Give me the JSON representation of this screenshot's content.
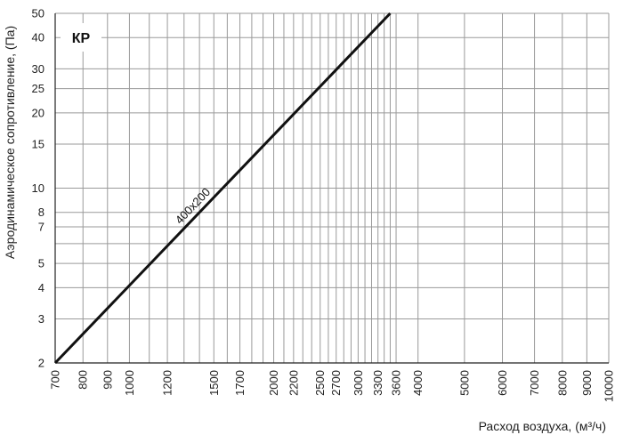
{
  "chart_data": {
    "type": "line",
    "title": "",
    "badge": "КР",
    "xlabel": "Расход воздуха, (м³/ч)",
    "ylabel": "Аэродинамическое сопротивление, (Па)",
    "xscale": "log",
    "yscale": "log",
    "xlim": [
      700,
      10000
    ],
    "ylim": [
      2,
      50
    ],
    "grid": true,
    "x_ticks": [
      700,
      800,
      900,
      1000,
      1200,
      1500,
      1700,
      2000,
      2200,
      2500,
      2700,
      3000,
      3300,
      3600,
      4000,
      5000,
      6000,
      7000,
      8000,
      9000,
      10000
    ],
    "x_tick_labels": [
      "700",
      "800",
      "900",
      "1000",
      "1200",
      "1500",
      "1700",
      "2000",
      "2200",
      "2500",
      "2700",
      "3000",
      "3300",
      "3600",
      "4000",
      "5000",
      "6000",
      "7000",
      "8000",
      "9000",
      "10000"
    ],
    "y_ticks": [
      2,
      3,
      4,
      5,
      7,
      8,
      10,
      15,
      20,
      25,
      30,
      40,
      50
    ],
    "y_tick_labels": [
      "2",
      "3",
      "4",
      "5",
      "7",
      "8",
      "10",
      "15",
      "20",
      "25",
      "30",
      "40",
      "50"
    ],
    "extra_x_grid": [
      1100,
      1300,
      1400,
      1600,
      1800,
      1900,
      2100,
      2300,
      2400,
      2600,
      2800,
      2900,
      3100,
      3200,
      3400,
      3500
    ],
    "extra_y_grid": [
      6
    ],
    "series": [
      {
        "name": "400x200",
        "x": [
          700,
          3500
        ],
        "y": [
          2.0,
          50.0
        ],
        "label_at_x": 1400
      }
    ]
  },
  "colors": {
    "line": "#111111",
    "grid": "#9a9a9a",
    "axis": "#222222"
  }
}
